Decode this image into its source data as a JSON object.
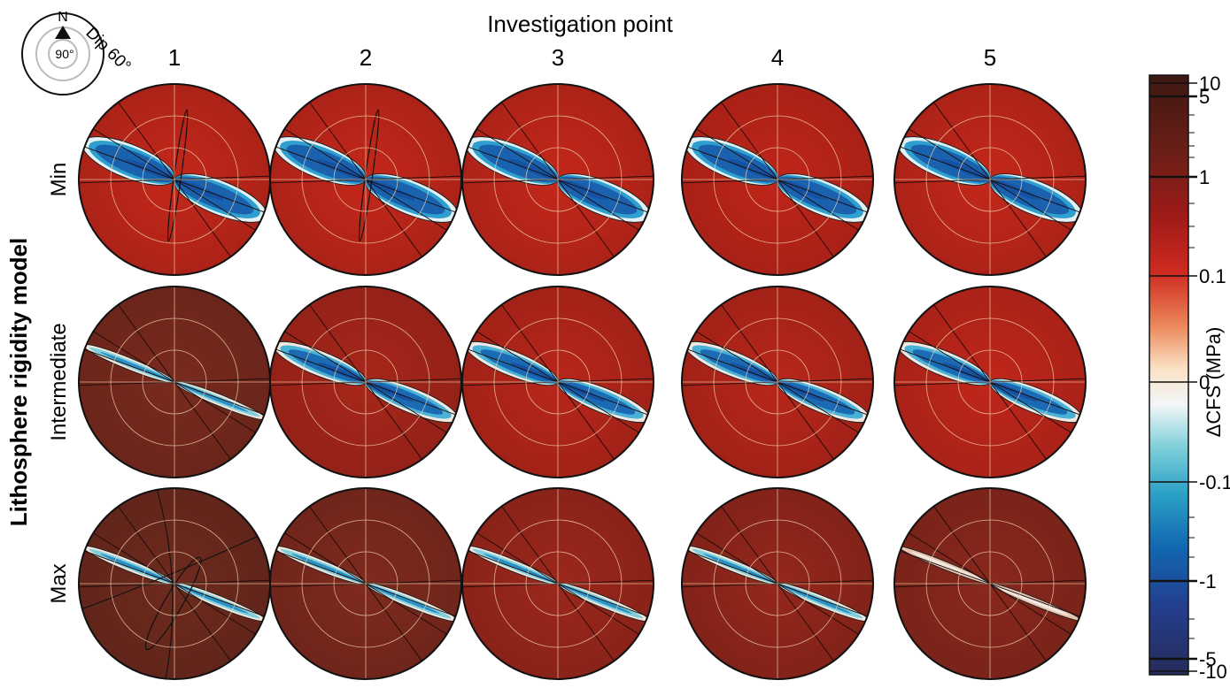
{
  "header": {
    "title": "Investigation point"
  },
  "columns": [
    "1",
    "2",
    "3",
    "4",
    "5"
  ],
  "rows": [
    "Min",
    "Intermediate",
    "Max"
  ],
  "y_axis_label": "Lithosphere rigidity model",
  "key": {
    "north": "N",
    "dip_label": "Dip 60°",
    "center_label": "90°"
  },
  "colorbar": {
    "label": "ΔCFS (MPa)",
    "ticks": [
      "10",
      "5",
      "1",
      "0.1",
      "0",
      "-0.1",
      "-1",
      "-5",
      "-10"
    ],
    "scale": "symmetric log",
    "colors_positive": [
      "#fae0c4",
      "#f0a070",
      "#dc4a32",
      "#b8141a",
      "#8e1f16",
      "#6b1f17",
      "#3e1712"
    ],
    "colors_negative": [
      "#e6f3f6",
      "#7fcfd9",
      "#2aa8c4",
      "#0a78ba",
      "#1552a2",
      "#223a87",
      "#262c5a"
    ]
  },
  "panels": [
    {
      "row": "Min",
      "column": "1",
      "background": "#c4271b",
      "negative_lobe": "wide",
      "extra_ellipse": "vertical"
    },
    {
      "row": "Min",
      "column": "2",
      "background": "#c4271b",
      "negative_lobe": "wide",
      "extra_ellipse": "vertical"
    },
    {
      "row": "Min",
      "column": "3",
      "background": "#c4271b",
      "negative_lobe": "wide",
      "extra_ellipse": "none"
    },
    {
      "row": "Min",
      "column": "4",
      "background": "#c0251a",
      "negative_lobe": "wide",
      "extra_ellipse": "none"
    },
    {
      "row": "Min",
      "column": "5",
      "background": "#c4271b",
      "negative_lobe": "wide",
      "extra_ellipse": "none"
    },
    {
      "row": "Intermediate",
      "column": "1",
      "background": "#7a2a1e",
      "negative_lobe": "thin",
      "extra_ellipse": "none"
    },
    {
      "row": "Intermediate",
      "column": "2",
      "background": "#a8261b",
      "negative_lobe": "medium",
      "extra_ellipse": "none"
    },
    {
      "row": "Intermediate",
      "column": "3",
      "background": "#b8261b",
      "negative_lobe": "medium",
      "extra_ellipse": "none"
    },
    {
      "row": "Intermediate",
      "column": "4",
      "background": "#b8261b",
      "negative_lobe": "medium",
      "extra_ellipse": "none"
    },
    {
      "row": "Intermediate",
      "column": "5",
      "background": "#c0261b",
      "negative_lobe": "medium",
      "extra_ellipse": "none"
    },
    {
      "row": "Max",
      "column": "1",
      "background": "#6e2a1e",
      "negative_lobe": "thin",
      "extra_ellipse": "cross"
    },
    {
      "row": "Max",
      "column": "2",
      "background": "#7f2a1e",
      "negative_lobe": "thin",
      "extra_ellipse": "none"
    },
    {
      "row": "Max",
      "column": "3",
      "background": "#9c271c",
      "negative_lobe": "thin",
      "extra_ellipse": "none"
    },
    {
      "row": "Max",
      "column": "4",
      "background": "#94271c",
      "negative_lobe": "thin",
      "extra_ellipse": "none"
    },
    {
      "row": "Max",
      "column": "5",
      "background": "#8a281d",
      "negative_lobe": "faint",
      "extra_ellipse": "none"
    }
  ]
}
